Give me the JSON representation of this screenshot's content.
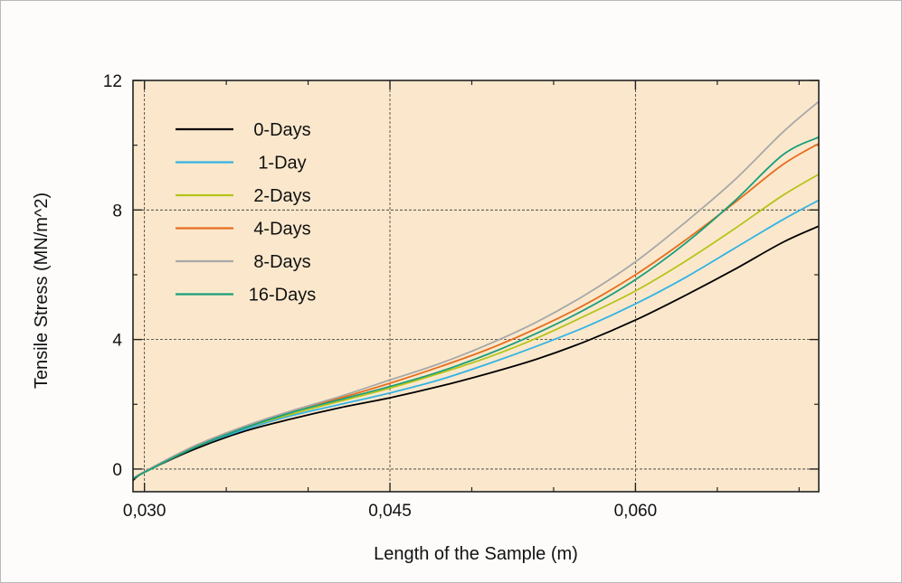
{
  "chart_data": {
    "type": "line",
    "title": "",
    "xlabel": "Length of the Sample (m)",
    "ylabel": "Tensile Stress (MN/m^2)",
    "xlim": [
      0.0293,
      0.0712
    ],
    "ylim": [
      -0.7,
      12
    ],
    "xticks": [
      0.03,
      0.045,
      0.06
    ],
    "xtick_labels": [
      "0,030",
      "0,045",
      "0,060"
    ],
    "yticks": [
      0,
      4,
      8,
      12
    ],
    "ytick_labels": [
      "0",
      "4",
      "8",
      "12"
    ],
    "grid": true,
    "legend_position": "top-left",
    "background": "#fbe8cc",
    "x": [
      0.0293,
      0.03,
      0.033,
      0.036,
      0.039,
      0.042,
      0.045,
      0.048,
      0.051,
      0.054,
      0.057,
      0.06,
      0.063,
      0.066,
      0.069,
      0.0712
    ],
    "series": [
      {
        "name": "0-Days",
        "color": "#000000",
        "values": [
          -0.35,
          -0.1,
          0.6,
          1.15,
          1.55,
          1.9,
          2.2,
          2.55,
          2.95,
          3.4,
          3.95,
          4.6,
          5.35,
          6.15,
          7.0,
          7.5
        ]
      },
      {
        "name": "1-Day",
        "color": "#33b3e3",
        "values": [
          -0.3,
          -0.1,
          0.65,
          1.2,
          1.65,
          2.0,
          2.35,
          2.75,
          3.25,
          3.8,
          4.4,
          5.1,
          5.9,
          6.8,
          7.7,
          8.3
        ]
      },
      {
        "name": "2-Days",
        "color": "#b5c41a",
        "values": [
          -0.3,
          -0.1,
          0.65,
          1.25,
          1.7,
          2.1,
          2.5,
          2.95,
          3.45,
          4.05,
          4.75,
          5.5,
          6.4,
          7.4,
          8.45,
          9.1
        ]
      },
      {
        "name": "4-Days",
        "color": "#e66d1f",
        "values": [
          -0.3,
          -0.08,
          0.7,
          1.3,
          1.8,
          2.2,
          2.65,
          3.15,
          3.7,
          4.35,
          5.1,
          6.0,
          7.05,
          8.2,
          9.4,
          10.05
        ]
      },
      {
        "name": "8-Days",
        "color": "#a8a8a8",
        "values": [
          -0.3,
          -0.08,
          0.7,
          1.3,
          1.8,
          2.25,
          2.75,
          3.25,
          3.85,
          4.55,
          5.4,
          6.4,
          7.6,
          8.9,
          10.4,
          11.35
        ]
      },
      {
        "name": "16-Days",
        "color": "#1a9e7a",
        "values": [
          -0.3,
          -0.1,
          0.65,
          1.25,
          1.75,
          2.15,
          2.55,
          3.0,
          3.55,
          4.2,
          4.95,
          5.85,
          6.95,
          8.25,
          9.7,
          10.25
        ]
      }
    ]
  }
}
